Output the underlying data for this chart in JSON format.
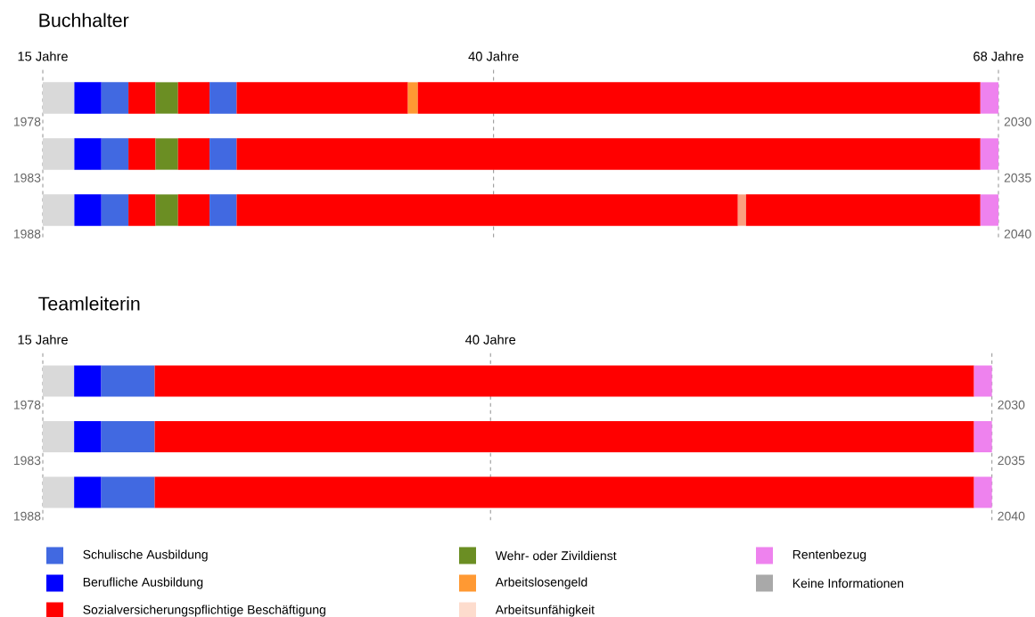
{
  "chart_data": [
    {
      "type": "bar",
      "orientation": "horizontal",
      "title": "Buchhalter",
      "categories": [
        "1978",
        "1983",
        "1988"
      ],
      "xlim": [
        15,
        68
      ],
      "xticks": [
        {
          "value": 15,
          "label": "15 Jahre"
        },
        {
          "value": 40,
          "label": "40 Jahre"
        },
        {
          "value": 68,
          "label": "68 Jahre"
        }
      ],
      "grid": "x",
      "annotations": [
        "2030",
        "2035",
        "2040"
      ],
      "series": [
        {
          "color": "#d9d9d9",
          "base": [
            15,
            15,
            15
          ],
          "values": [
            1.75,
            1.75,
            1.75
          ]
        },
        {
          "color": "#0000ff",
          "base": [
            16.75,
            16.75,
            16.75
          ],
          "values": [
            1.5,
            1.5,
            1.5
          ]
        },
        {
          "color": "#4169e1",
          "base": [
            18.25,
            18.25,
            18.25
          ],
          "values": [
            1.5,
            1.5,
            1.5
          ]
        },
        {
          "color": "#ff0000",
          "base": [
            19.75,
            19.75,
            19.75
          ],
          "values": [
            1.5,
            1.5,
            1.5
          ]
        },
        {
          "color": "#6b8e23",
          "base": [
            21.25,
            21.25,
            21.25
          ],
          "values": [
            1.25,
            1.25,
            1.25
          ]
        },
        {
          "color": "#ff0000",
          "base": [
            22.5,
            22.5,
            22.5
          ],
          "values": [
            1.75,
            1.75,
            1.75
          ]
        },
        {
          "color": "#4169e1",
          "base": [
            24.25,
            24.25,
            24.25
          ],
          "values": [
            1.5,
            1.5,
            1.5
          ]
        },
        {
          "color": "#ff0000",
          "base": [
            25.75,
            25.75,
            25.75
          ],
          "values": [
            9.5,
            41.25,
            27.8
          ]
        },
        {
          "color": "#ff9933",
          "base": [
            35.25,
            null,
            null
          ],
          "values": [
            0.55,
            null,
            null
          ]
        },
        {
          "color": "#fa9f80",
          "base": [
            null,
            null,
            53.55
          ],
          "values": [
            null,
            null,
            0.45
          ]
        },
        {
          "color": "#ff0000",
          "base": [
            35.8,
            null,
            54.0
          ],
          "values": [
            31.2,
            null,
            13.0
          ]
        },
        {
          "color": "#ee82ee",
          "base": [
            67,
            67,
            67
          ],
          "values": [
            1,
            1,
            1
          ]
        }
      ]
    },
    {
      "type": "bar",
      "orientation": "horizontal",
      "title": "Teamleiterin",
      "categories": [
        "1978",
        "1983",
        "1988"
      ],
      "xlim": [
        15,
        68
      ],
      "xticks": [
        {
          "value": 15,
          "label": "15 Jahre"
        },
        {
          "value": 40,
          "label": "40 Jahre"
        },
        {
          "value": 68,
          "label": null
        }
      ],
      "grid": "x",
      "legend": "bottom",
      "annotations": [
        "2030",
        "2035",
        "2040"
      ],
      "series": [
        {
          "color": "#d9d9d9",
          "base": [
            15,
            15,
            15
          ],
          "values": [
            1.75,
            1.75,
            1.75
          ]
        },
        {
          "name": "Schulische Ausbildung",
          "color": "#4169e1",
          "base": [
            18.25,
            18.25,
            18.25
          ],
          "values": [
            3,
            3,
            3
          ]
        },
        {
          "name": "Berufliche Ausbildung",
          "color": "#0000ff",
          "base": [
            16.75,
            16.75,
            16.75
          ],
          "values": [
            1.5,
            1.5,
            1.5
          ]
        },
        {
          "name": "Sozialversicherungspflichtige Beschäftigung",
          "color": "#ff0000",
          "base": [
            21.25,
            21.25,
            21.25
          ],
          "values": [
            45.75,
            45.75,
            45.75
          ]
        },
        {
          "name": "Wehr- oder Zivildienst",
          "color": "#6b8e23",
          "values": [
            null,
            null,
            null
          ]
        },
        {
          "name": "Arbeitslosengeld",
          "color": "#ff9933",
          "values": [
            null,
            null,
            null
          ]
        },
        {
          "name": "Arbeitsunfähigkeit",
          "color": "#fddccd",
          "values": [
            null,
            null,
            null
          ]
        },
        {
          "name": "Rentenbezug",
          "color": "#ee82ee",
          "base": [
            67,
            67,
            67
          ],
          "values": [
            1,
            1,
            1
          ]
        },
        {
          "name": "Keine Informationen",
          "color": "#a9a9a9",
          "values": [
            null,
            null,
            null
          ]
        }
      ]
    }
  ]
}
